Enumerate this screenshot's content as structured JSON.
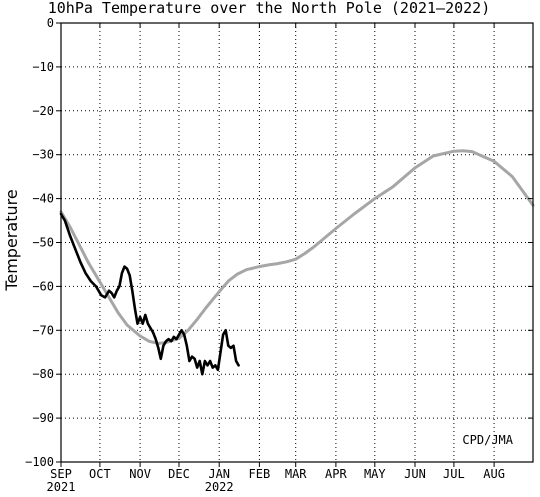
{
  "chart_data": {
    "type": "line",
    "title": "10hPa Temperature over the North Pole (2021–2022)",
    "xlabel": "",
    "ylabel": "Temperature",
    "credit": "CPD/JMA",
    "ylim": [
      -100,
      0
    ],
    "yticks": [
      0,
      -10,
      -20,
      -30,
      -40,
      -50,
      -60,
      -70,
      -80,
      -90,
      -100
    ],
    "ytick_labels": [
      "0",
      "−10",
      "−20",
      "−30",
      "−40",
      "−50",
      "−60",
      "−70",
      "−80",
      "−90",
      "−100"
    ],
    "xlim": [
      "2021-09-01",
      "2022-08-31"
    ],
    "xticks": [
      {
        "date": "2021-09-01",
        "label": "SEP",
        "year": "2021"
      },
      {
        "date": "2021-10-01",
        "label": "OCT"
      },
      {
        "date": "2021-11-01",
        "label": "NOV"
      },
      {
        "date": "2021-12-01",
        "label": "DEC"
      },
      {
        "date": "2022-01-01",
        "label": "JAN",
        "year": "2022"
      },
      {
        "date": "2022-02-01",
        "label": "FEB"
      },
      {
        "date": "2022-03-01",
        "label": "MAR"
      },
      {
        "date": "2022-04-01",
        "label": "APR"
      },
      {
        "date": "2022-05-01",
        "label": "MAY"
      },
      {
        "date": "2022-06-01",
        "label": "JUN"
      },
      {
        "date": "2022-07-01",
        "label": "JUL"
      },
      {
        "date": "2022-08-01",
        "label": "AUG"
      }
    ],
    "grid": true,
    "series": [
      {
        "color": "#a6a6a6",
        "x": [
          "2021-09-01",
          "2021-09-08",
          "2021-09-15",
          "2021-09-22",
          "2021-10-01",
          "2021-10-08",
          "2021-10-15",
          "2021-10-22",
          "2021-11-01",
          "2021-11-08",
          "2021-11-15",
          "2021-11-22",
          "2021-12-01",
          "2021-12-08",
          "2021-12-15",
          "2021-12-22",
          "2022-01-01",
          "2022-01-08",
          "2022-01-15",
          "2022-01-22",
          "2022-02-01",
          "2022-02-08",
          "2022-02-15",
          "2022-02-22",
          "2022-03-01",
          "2022-03-08",
          "2022-03-15",
          "2022-03-22",
          "2022-04-01",
          "2022-04-15",
          "2022-05-01",
          "2022-05-15",
          "2022-06-01",
          "2022-06-15",
          "2022-07-01",
          "2022-07-08",
          "2022-07-15",
          "2022-07-22",
          "2022-08-01",
          "2022-08-15",
          "2022-08-31"
        ],
        "values": [
          -43.0,
          -46.5,
          -50.5,
          -54.5,
          -59.0,
          -62.5,
          -66.0,
          -68.8,
          -71.3,
          -72.5,
          -73.0,
          -72.7,
          -71.8,
          -70.0,
          -67.5,
          -64.8,
          -61.2,
          -58.8,
          -57.2,
          -56.2,
          -55.5,
          -55.1,
          -54.8,
          -54.4,
          -53.8,
          -52.5,
          -51.0,
          -49.3,
          -46.8,
          -43.5,
          -40.0,
          -37.3,
          -33.0,
          -30.3,
          -29.2,
          -29.1,
          -29.3,
          -30.2,
          -31.5,
          -35.0,
          -41.5
        ]
      },
      {
        "color": "#000000",
        "x": [
          "2021-09-01",
          "2021-09-04",
          "2021-09-08",
          "2021-09-12",
          "2021-09-16",
          "2021-09-20",
          "2021-09-24",
          "2021-09-28",
          "2021-10-02",
          "2021-10-05",
          "2021-10-08",
          "2021-10-10",
          "2021-10-12",
          "2021-10-14",
          "2021-10-16",
          "2021-10-18",
          "2021-10-20",
          "2021-10-22",
          "2021-10-24",
          "2021-10-26",
          "2021-10-28",
          "2021-10-30",
          "2021-11-01",
          "2021-11-03",
          "2021-11-05",
          "2021-11-07",
          "2021-11-09",
          "2021-11-11",
          "2021-11-13",
          "2021-11-15",
          "2021-11-17",
          "2021-11-19",
          "2021-11-21",
          "2021-11-23",
          "2021-11-25",
          "2021-11-27",
          "2021-11-29",
          "2021-12-01",
          "2021-12-03",
          "2021-12-05",
          "2021-12-07",
          "2021-12-09",
          "2021-12-11",
          "2021-12-13",
          "2021-12-15",
          "2021-12-17",
          "2021-12-19",
          "2021-12-21",
          "2021-12-23",
          "2021-12-25",
          "2021-12-27",
          "2021-12-29",
          "2021-12-31",
          "2022-01-02",
          "2022-01-04",
          "2022-01-06",
          "2022-01-08",
          "2022-01-10",
          "2022-01-12",
          "2022-01-14",
          "2022-01-16"
        ],
        "values": [
          -43.5,
          -45.0,
          -48.5,
          -51.5,
          -54.5,
          -57.0,
          -58.8,
          -60.0,
          -62.0,
          -62.5,
          -61.0,
          -61.5,
          -62.5,
          -61.0,
          -60.0,
          -57.0,
          -55.5,
          -56.0,
          -57.5,
          -61.0,
          -65.0,
          -68.5,
          -67.0,
          -68.5,
          -66.5,
          -68.5,
          -69.5,
          -70.5,
          -72.0,
          -74.0,
          -76.5,
          -73.5,
          -72.5,
          -72.0,
          -72.5,
          -71.5,
          -72.0,
          -71.0,
          -70.0,
          -71.0,
          -73.5,
          -77.0,
          -76.0,
          -76.5,
          -78.5,
          -77.0,
          -80.0,
          -77.0,
          -78.0,
          -77.0,
          -78.5,
          -78.0,
          -79.0,
          -75.0,
          -71.0,
          -70.0,
          -73.5,
          -74.0,
          -73.5,
          -77.0,
          -78.0
        ]
      }
    ]
  }
}
